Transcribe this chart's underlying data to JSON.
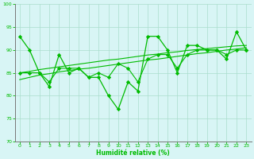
{
  "x": [
    0,
    1,
    2,
    3,
    4,
    5,
    6,
    7,
    8,
    9,
    10,
    11,
    12,
    13,
    14,
    15,
    16,
    17,
    18,
    19,
    20,
    21,
    22,
    23
  ],
  "y_main": [
    93,
    90,
    85,
    82,
    89,
    85,
    86,
    84,
    84,
    80,
    77,
    83,
    81,
    93,
    93,
    90,
    85,
    91,
    91,
    90,
    90,
    88,
    94,
    90
  ],
  "y_s2": [
    85,
    85,
    85,
    83,
    86,
    86,
    86,
    84,
    85,
    84,
    87,
    86,
    83,
    88,
    89,
    89,
    86,
    89,
    90,
    90,
    90,
    89,
    90,
    90
  ],
  "y_trend1": [
    83.5,
    84.0,
    84.5,
    84.8,
    85.2,
    85.5,
    85.8,
    86.0,
    86.3,
    86.6,
    86.9,
    87.2,
    87.5,
    87.8,
    88.0,
    88.3,
    88.6,
    88.9,
    89.2,
    89.4,
    89.7,
    90.0,
    90.2,
    90.5
  ],
  "y_trend2": [
    85.0,
    85.3,
    85.7,
    86.0,
    86.3,
    86.6,
    86.9,
    87.2,
    87.5,
    87.8,
    88.0,
    88.3,
    88.6,
    88.9,
    89.1,
    89.4,
    89.6,
    89.9,
    90.1,
    90.3,
    90.5,
    90.7,
    90.9,
    91.0
  ],
  "line_color": "#00bb00",
  "bg_color": "#d8f5f5",
  "grid_color": "#aaddcc",
  "xlabel": "Humidité relative (%)",
  "xlim": [
    -0.5,
    23.5
  ],
  "ylim": [
    70,
    100
  ],
  "yticks": [
    70,
    75,
    80,
    85,
    90,
    95,
    100
  ],
  "xticks": [
    0,
    1,
    2,
    3,
    4,
    5,
    6,
    7,
    8,
    9,
    10,
    11,
    12,
    13,
    14,
    15,
    16,
    17,
    18,
    19,
    20,
    21,
    22,
    23
  ]
}
